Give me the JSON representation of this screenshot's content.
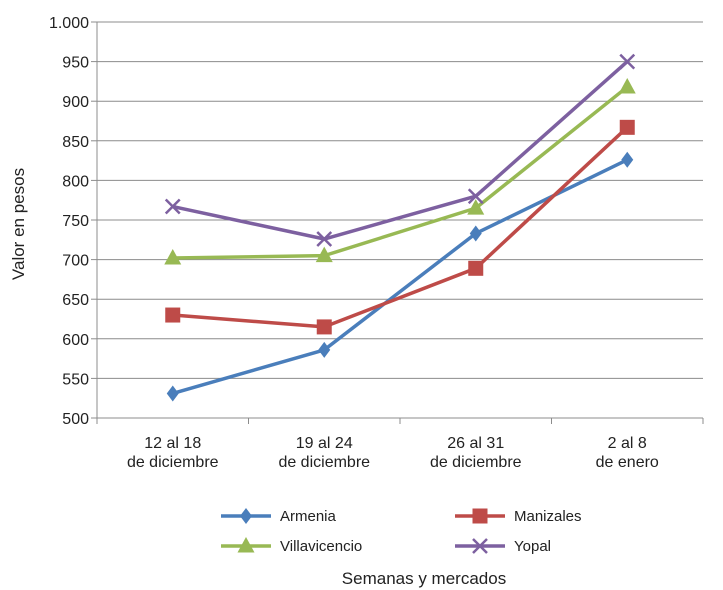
{
  "chart_data": {
    "type": "line",
    "title": "",
    "xlabel": "Semanas y mercados",
    "ylabel": "Valor en pesos",
    "ylim": [
      500,
      1000
    ],
    "yticks": [
      "500",
      "550",
      "600",
      "650",
      "700",
      "750",
      "800",
      "850",
      "900",
      "950",
      "1.000"
    ],
    "grid": true,
    "legend_position": "bottom",
    "categories": [
      [
        "12 al 18",
        "de diciembre"
      ],
      [
        "19 al 24",
        "de diciembre"
      ],
      [
        "26 al 31",
        "de diciembre"
      ],
      [
        "2 al 8",
        "de enero"
      ]
    ],
    "series": [
      {
        "name": "Armenia",
        "color": "#4a7ebb",
        "marker": "diamond",
        "values": [
          531,
          586,
          733,
          826
        ]
      },
      {
        "name": "Manizales",
        "color": "#be4b48",
        "marker": "square",
        "values": [
          630,
          615,
          689,
          867
        ]
      },
      {
        "name": "Villavicencio",
        "color": "#98b954",
        "marker": "triangle",
        "values": [
          702,
          705,
          765,
          918
        ]
      },
      {
        "name": "Yopal",
        "color": "#7d60a0",
        "marker": "x",
        "values": [
          767,
          726,
          780,
          950
        ]
      }
    ]
  }
}
